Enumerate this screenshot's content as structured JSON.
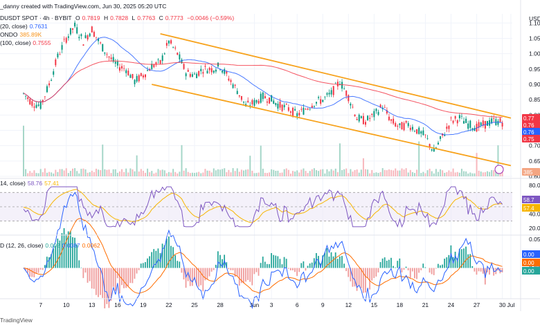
{
  "header": {
    "line1": {
      "credit": "_danny created with TradingView.com, Jun 30, 2025 05:20 UTC"
    },
    "line2": {
      "symbol": "DUSDT SPOT · 4h · BYBIT",
      "open_label": "O",
      "open": "0.7819",
      "high_label": "H",
      "high": "0.7828",
      "low_label": "L",
      "low": "0.7763",
      "close_label": "C",
      "close": "0.7773",
      "change": "−0.0046 (−0.59%)"
    },
    "ma20": {
      "label": "(20, close)",
      "value": "0.7631"
    },
    "vol": {
      "label": "ONDO",
      "value": "385.89K"
    },
    "ma100": {
      "label": "(100, close)",
      "value": "0.7555"
    }
  },
  "price_axis": {
    "currency": "USD",
    "ticks": [
      "1.10",
      "1.05",
      "1.00",
      "0.95",
      "0.90",
      "0.85",
      "0.80",
      "0.75",
      "0.70",
      "0.65",
      "0.60"
    ],
    "tags": [
      {
        "text": "0.77",
        "color": "#f23645"
      },
      {
        "text": "0.76",
        "color": "#f23645"
      },
      {
        "text": "0.76",
        "color": "#2962ff"
      },
      {
        "text": "0.75",
        "color": "#f23645"
      }
    ],
    "volume_tag": "385"
  },
  "rsi": {
    "label": "14, close)",
    "value": "58.76",
    "ma_value": "57.41",
    "ticks": [
      "80.00",
      "60.00",
      "40.00",
      "20.00"
    ],
    "tag1": "58.7",
    "tag2": "57.4"
  },
  "macd": {
    "label": "D (12, 26, close)",
    "hist": "0.002",
    "macd": "0.0087",
    "signal": "0.0062",
    "ticks": [
      "0.05",
      "0.00"
    ],
    "tag1": "0.00",
    "tag2": "0.00",
    "tag3": "0.00"
  },
  "time_axis": {
    "ticks": [
      "7",
      "10",
      "13",
      "16",
      "19",
      "22",
      "25",
      "28",
      "Jun",
      "3",
      "6",
      "9",
      "12",
      "15",
      "18",
      "21",
      "24",
      "27",
      "30",
      "Jul"
    ]
  },
  "footer": "TradingView",
  "colors": {
    "up": "#089981",
    "down": "#f23645",
    "ma20": "#2962ff",
    "ma100": "#f23645",
    "channel": "#f7a21b",
    "rsi": "#7e57c2",
    "rsi_ma": "#f7b500",
    "macd": "#2962ff",
    "signal": "#ff6d00"
  },
  "chart_data": {
    "type": "candlestick",
    "symbol": "DUSDT",
    "interval": "4h",
    "price_range": [
      0.6,
      1.13
    ],
    "close_path": [
      {
        "x": "May 5",
        "y": 0.87
      },
      {
        "x": "May 6",
        "y": 0.84
      },
      {
        "x": "May 7",
        "y": 0.83
      },
      {
        "x": "May 8",
        "y": 0.9
      },
      {
        "x": "May 9",
        "y": 0.99
      },
      {
        "x": "May 10",
        "y": 1.05
      },
      {
        "x": "May 11",
        "y": 1.09
      },
      {
        "x": "May 12",
        "y": 1.04
      },
      {
        "x": "May 13",
        "y": 1.08
      },
      {
        "x": "May 14",
        "y": 1.03
      },
      {
        "x": "May 15",
        "y": 0.99
      },
      {
        "x": "May 16",
        "y": 0.96
      },
      {
        "x": "May 17",
        "y": 0.95
      },
      {
        "x": "May 18",
        "y": 0.91
      },
      {
        "x": "May 19",
        "y": 0.93
      },
      {
        "x": "May 20",
        "y": 0.96
      },
      {
        "x": "May 21",
        "y": 0.97
      },
      {
        "x": "May 22",
        "y": 1.04
      },
      {
        "x": "May 23",
        "y": 1.0
      },
      {
        "x": "May 24",
        "y": 0.94
      },
      {
        "x": "May 25",
        "y": 0.93
      },
      {
        "x": "May 26",
        "y": 0.95
      },
      {
        "x": "May 27",
        "y": 0.95
      },
      {
        "x": "May 28",
        "y": 0.96
      },
      {
        "x": "May 29",
        "y": 0.92
      },
      {
        "x": "May 30",
        "y": 0.88
      },
      {
        "x": "May 31",
        "y": 0.83
      },
      {
        "x": "Jun 1",
        "y": 0.84
      },
      {
        "x": "Jun 2",
        "y": 0.86
      },
      {
        "x": "Jun 3",
        "y": 0.85
      },
      {
        "x": "Jun 4",
        "y": 0.83
      },
      {
        "x": "Jun 5",
        "y": 0.82
      },
      {
        "x": "Jun 6",
        "y": 0.8
      },
      {
        "x": "Jun 7",
        "y": 0.82
      },
      {
        "x": "Jun 8",
        "y": 0.84
      },
      {
        "x": "Jun 9",
        "y": 0.85
      },
      {
        "x": "Jun 10",
        "y": 0.87
      },
      {
        "x": "Jun 11",
        "y": 0.91
      },
      {
        "x": "Jun 12",
        "y": 0.86
      },
      {
        "x": "Jun 13",
        "y": 0.79
      },
      {
        "x": "Jun 14",
        "y": 0.78
      },
      {
        "x": "Jun 15",
        "y": 0.8
      },
      {
        "x": "Jun 16",
        "y": 0.83
      },
      {
        "x": "Jun 17",
        "y": 0.78
      },
      {
        "x": "Jun 18",
        "y": 0.76
      },
      {
        "x": "Jun 19",
        "y": 0.77
      },
      {
        "x": "Jun 20",
        "y": 0.75
      },
      {
        "x": "Jun 21",
        "y": 0.73
      },
      {
        "x": "Jun 22",
        "y": 0.68
      },
      {
        "x": "Jun 23",
        "y": 0.73
      },
      {
        "x": "Jun 24",
        "y": 0.78
      },
      {
        "x": "Jun 25",
        "y": 0.79
      },
      {
        "x": "Jun 26",
        "y": 0.77
      },
      {
        "x": "Jun 27",
        "y": 0.76
      },
      {
        "x": "Jun 28",
        "y": 0.77
      },
      {
        "x": "Jun 29",
        "y": 0.78
      },
      {
        "x": "Jun 30",
        "y": 0.777
      }
    ],
    "channel": {
      "upper": [
        {
          "x": "May 21",
          "y": 1.065
        },
        {
          "x": "Jul 1",
          "y": 0.79
        }
      ],
      "lower": [
        {
          "x": "May 20",
          "y": 0.9
        },
        {
          "x": "Jul 1",
          "y": 0.635
        }
      ]
    },
    "rsi_range": [
      20,
      80
    ],
    "macd_range": [
      -0.05,
      0.05
    ]
  }
}
